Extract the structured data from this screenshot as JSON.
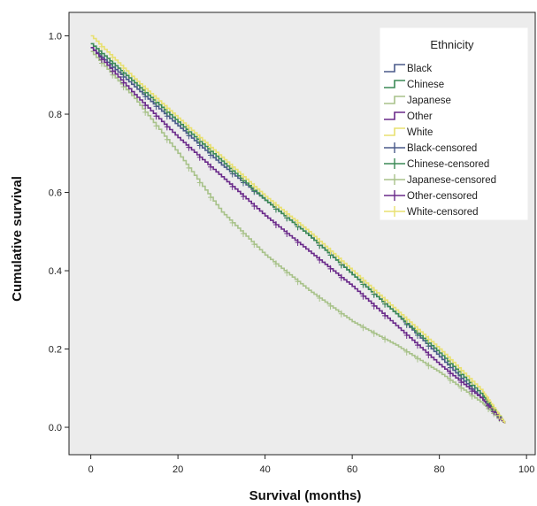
{
  "chart_data": {
    "type": "line",
    "step": true,
    "xlabel": "Survival (months)",
    "ylabel": "Cumulative survival",
    "xlim": [
      -5,
      102
    ],
    "ylim": [
      -0.07,
      1.06
    ],
    "xticks": [
      0,
      20,
      40,
      60,
      80,
      100
    ],
    "yticks": [
      0.0,
      0.2,
      0.4,
      0.6,
      0.8,
      1.0
    ],
    "xtick_labels": [
      "0",
      "20",
      "40",
      "60",
      "80",
      "100"
    ],
    "ytick_labels": [
      "0.0",
      "0.2",
      "0.4",
      "0.6",
      "0.8",
      "1.0"
    ],
    "background": "#ececec",
    "grid": false,
    "legend": {
      "title": "Ethnicity",
      "position": "top-right",
      "entries": [
        "Black",
        "Chinese",
        "Japanese",
        "Other",
        "White",
        "Black-censored",
        "Chinese-censored",
        "Japanese-censored",
        "Other-censored",
        "White-censored"
      ]
    },
    "series": [
      {
        "name": "Black",
        "color": "#4a5a8a",
        "x": [
          0,
          10,
          20,
          30,
          40,
          50,
          60,
          70,
          80,
          90,
          95
        ],
        "y": [
          0.97,
          0.87,
          0.77,
          0.67,
          0.58,
          0.49,
          0.39,
          0.29,
          0.18,
          0.07,
          0.01
        ]
      },
      {
        "name": "Chinese",
        "color": "#3c8a56",
        "x": [
          0,
          10,
          20,
          30,
          40,
          50,
          60,
          70,
          80,
          90,
          95
        ],
        "y": [
          0.98,
          0.88,
          0.78,
          0.68,
          0.58,
          0.49,
          0.39,
          0.29,
          0.19,
          0.08,
          0.01
        ]
      },
      {
        "name": "Japanese",
        "color": "#a8c28a",
        "x": [
          0,
          10,
          20,
          30,
          40,
          50,
          60,
          70,
          80,
          90,
          95
        ],
        "y": [
          0.96,
          0.84,
          0.7,
          0.55,
          0.44,
          0.35,
          0.27,
          0.21,
          0.14,
          0.06,
          0.01
        ]
      },
      {
        "name": "Other",
        "color": "#6a2a8a",
        "x": [
          0,
          10,
          20,
          30,
          40,
          50,
          60,
          70,
          80,
          90,
          95
        ],
        "y": [
          0.97,
          0.85,
          0.74,
          0.64,
          0.54,
          0.45,
          0.36,
          0.26,
          0.16,
          0.07,
          0.01
        ]
      },
      {
        "name": "White",
        "color": "#e8e070",
        "x": [
          0,
          10,
          20,
          30,
          40,
          50,
          60,
          70,
          80,
          90,
          95
        ],
        "y": [
          1.0,
          0.89,
          0.79,
          0.69,
          0.59,
          0.5,
          0.4,
          0.3,
          0.2,
          0.09,
          0.01
        ]
      }
    ]
  }
}
